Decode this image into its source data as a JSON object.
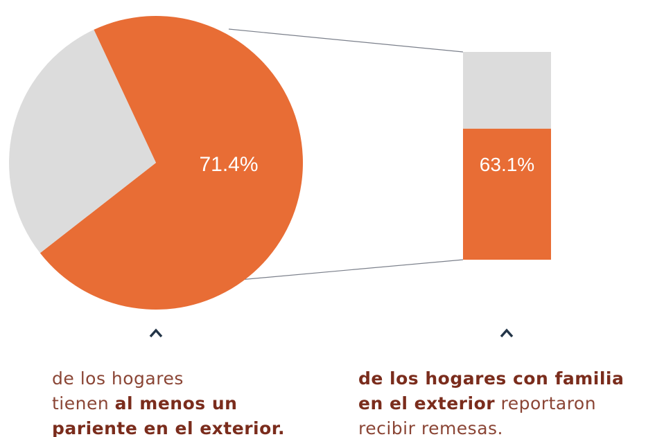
{
  "chart_data": [
    {
      "type": "pie",
      "values": [
        71.4,
        28.6
      ],
      "value_labels": [
        "71.4%",
        null
      ],
      "colors": [
        "#e86d35",
        "#dcdcdc"
      ],
      "start_angle": 335,
      "caption": [
        [
          {
            "text": "de los hogares",
            "bold": false
          }
        ],
        [
          {
            "text": "tienen ",
            "bold": false
          },
          {
            "text": "al menos un",
            "bold": true
          }
        ],
        [
          {
            "text": "pariente en el exterior.",
            "bold": true
          }
        ]
      ]
    },
    {
      "type": "stacked-bar",
      "values": [
        63.1,
        36.9
      ],
      "value_labels": [
        "63.1%",
        null
      ],
      "colors": [
        "#e86d35",
        "#dcdcdc"
      ],
      "caption": [
        [
          {
            "text": "de los hogares con familia",
            "bold": true
          }
        ],
        [
          {
            "text": "en el exterior",
            "bold": true
          },
          {
            "text": " reportaron",
            "bold": false
          }
        ],
        [
          {
            "text": "recibir remesas.",
            "bold": false
          }
        ]
      ]
    }
  ]
}
